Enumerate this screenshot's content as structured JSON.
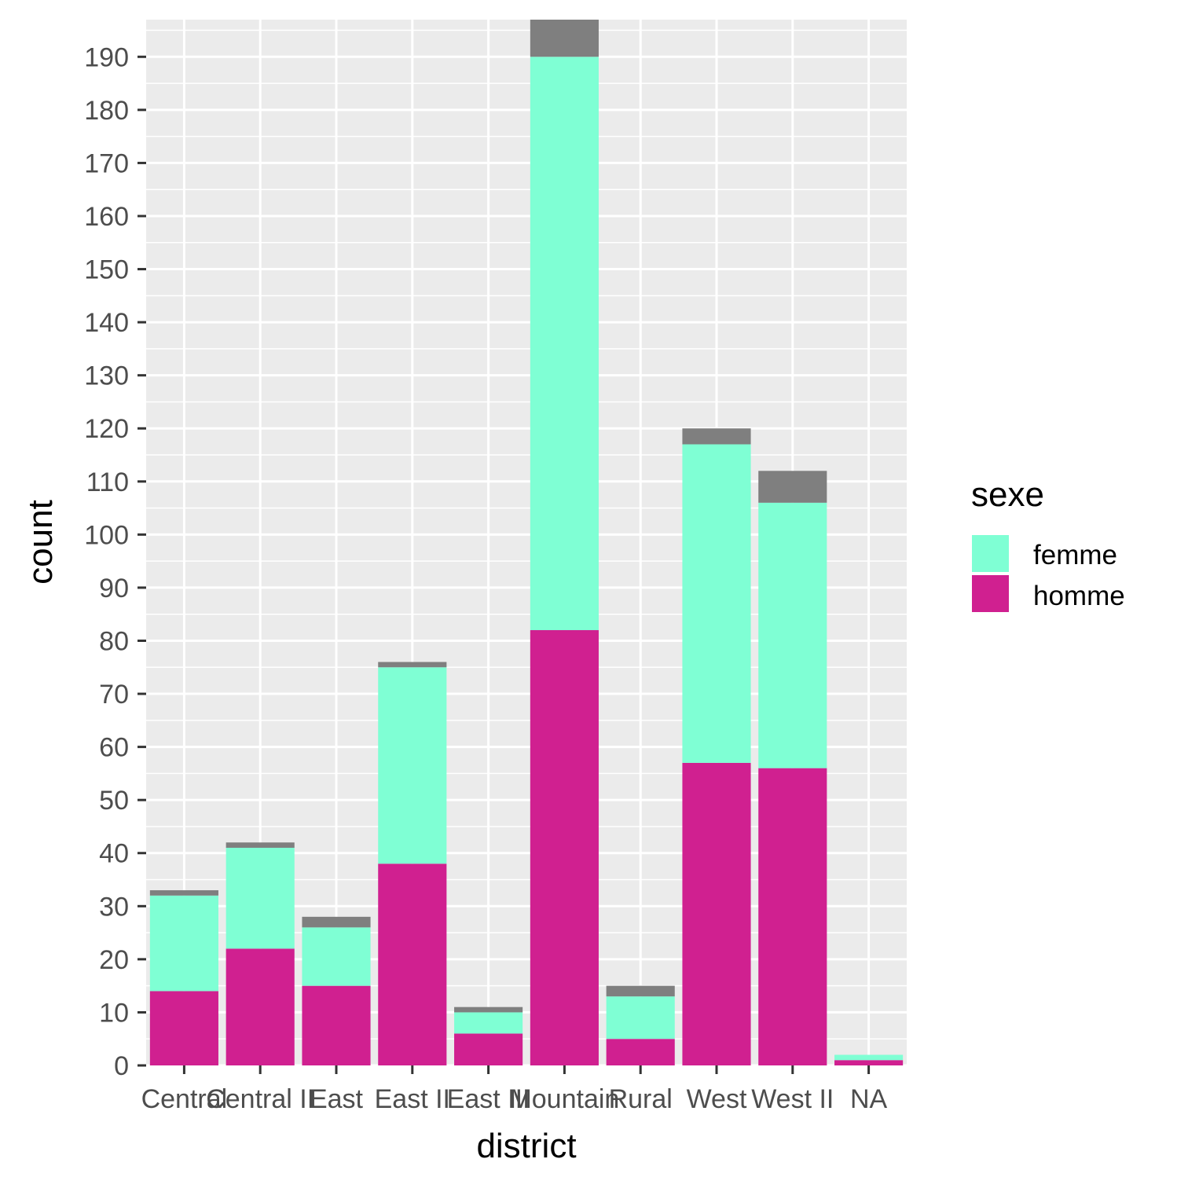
{
  "chart_data": {
    "type": "bar",
    "stacked": true,
    "xlabel": "district",
    "ylabel": "count",
    "ylim": [
      0,
      197
    ],
    "yticks": [
      0,
      10,
      20,
      30,
      40,
      50,
      60,
      70,
      80,
      90,
      100,
      110,
      120,
      130,
      140,
      150,
      160,
      170,
      180,
      190
    ],
    "categories": [
      "Central",
      "Central II",
      "East",
      "East II",
      "East III",
      "Mountain",
      "Rural",
      "West",
      "West II",
      "NA"
    ],
    "series": [
      {
        "name": "homme",
        "color": "#d02090",
        "values": [
          14,
          22,
          15,
          38,
          6,
          82,
          5,
          57,
          56,
          1
        ]
      },
      {
        "name": "femme",
        "color": "#7fffd4",
        "values": [
          18,
          19,
          11,
          37,
          4,
          108,
          8,
          60,
          50,
          1
        ]
      },
      {
        "name": "NA",
        "color": "#7f7f7f",
        "values": [
          1,
          1,
          2,
          1,
          1,
          7,
          2,
          3,
          6,
          0
        ]
      }
    ],
    "legend": {
      "title": "sexe",
      "position": "right",
      "entries": [
        {
          "label": "femme",
          "color": "#7fffd4"
        },
        {
          "label": "homme",
          "color": "#d02090"
        }
      ]
    },
    "grid": true,
    "panel_background": "#ebebeb"
  }
}
